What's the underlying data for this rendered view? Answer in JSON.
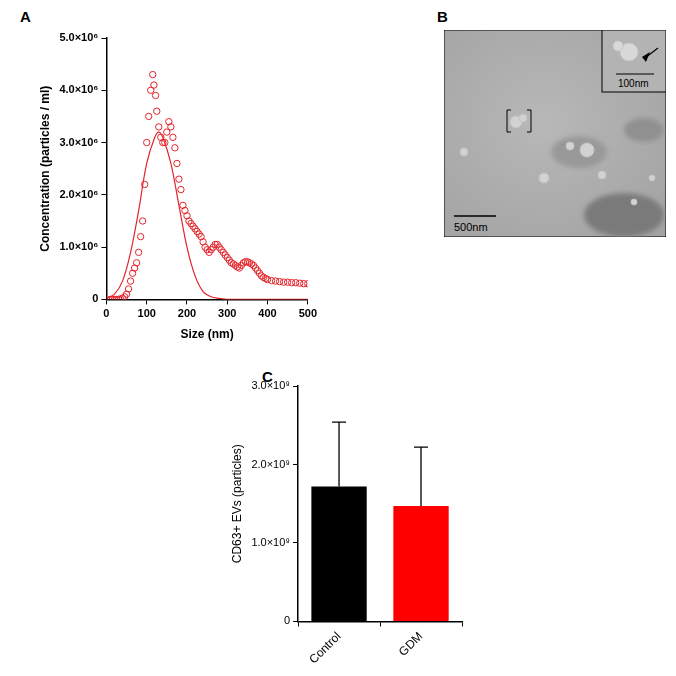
{
  "chart_data": [
    {
      "panel": "A",
      "type": "scatter",
      "x_label": "Size (nm)",
      "y_label": "Concentration (particles / ml)",
      "xlim": [
        0,
        500
      ],
      "xticks": [
        0,
        100,
        200,
        300,
        400,
        500
      ],
      "ylim": [
        0,
        5000000
      ],
      "yticks": [
        0,
        {
          "value": 1000000,
          "label": "1.0×10⁶"
        },
        {
          "value": 2000000,
          "label": "2.0×10⁶"
        },
        {
          "value": 3000000,
          "label": "3.0×10⁶"
        },
        {
          "value": 4000000,
          "label": "4.0×10⁶"
        },
        {
          "value": 5000000,
          "label": "5.0×10⁶"
        }
      ],
      "grid": false,
      "series": [
        {
          "type": "scatter",
          "marker": "circle",
          "color": "#e3242b",
          "x": [
            10,
            15,
            20,
            25,
            30,
            35,
            40,
            45,
            50,
            55,
            60,
            65,
            70,
            75,
            80,
            85,
            90,
            95,
            100,
            105,
            110,
            115,
            118,
            122,
            125,
            130,
            135,
            140,
            145,
            150,
            155,
            160,
            165,
            170,
            175,
            180,
            185,
            190,
            195,
            200,
            205,
            210,
            215,
            220,
            225,
            230,
            235,
            240,
            245,
            250,
            255,
            260,
            265,
            270,
            275,
            280,
            285,
            290,
            295,
            300,
            305,
            310,
            315,
            320,
            325,
            330,
            335,
            340,
            345,
            350,
            355,
            360,
            365,
            370,
            375,
            380,
            385,
            390,
            395,
            400,
            410,
            420,
            430,
            440,
            450,
            460,
            470,
            480,
            490,
            500
          ],
          "values": [
            0,
            0,
            0,
            0,
            0,
            10000,
            20000,
            50000,
            100000,
            200000,
            350000,
            500000,
            600000,
            700000,
            900000,
            1200000,
            1500000,
            2200000,
            3000000,
            3500000,
            4000000,
            4300000,
            4100000,
            3900000,
            3600000,
            3300000,
            3100000,
            3000000,
            3000000,
            3200000,
            3400000,
            3300000,
            3100000,
            2900000,
            2600000,
            2300000,
            2100000,
            1800000,
            1700000,
            1600000,
            1500000,
            1450000,
            1400000,
            1350000,
            1300000,
            1250000,
            1200000,
            1100000,
            1000000,
            950000,
            900000,
            950000,
            1000000,
            1050000,
            1050000,
            1000000,
            950000,
            900000,
            850000,
            800000,
            750000,
            700000,
            680000,
            650000,
            620000,
            600000,
            650000,
            700000,
            720000,
            720000,
            700000,
            680000,
            650000,
            600000,
            550000,
            500000,
            450000,
            420000,
            400000,
            380000,
            360000,
            350000,
            340000,
            330000,
            330000,
            320000,
            320000,
            310000,
            300000,
            300000
          ]
        },
        {
          "type": "line",
          "line_style": "solid",
          "color": "#e3242b",
          "x": [
            0,
            20,
            40,
            60,
            80,
            100,
            120,
            130,
            140,
            160,
            180,
            200,
            220,
            240,
            260,
            280,
            300,
            350,
            400,
            450,
            500
          ],
          "values": [
            20000,
            100000,
            350000,
            900000,
            1700000,
            2600000,
            3100000,
            3200000,
            3100000,
            2600000,
            1800000,
            1000000,
            450000,
            150000,
            50000,
            20000,
            0,
            0,
            0,
            0,
            0
          ]
        }
      ]
    },
    {
      "panel": "B",
      "type": "image",
      "annotations": [
        "500nm",
        "100nm"
      ]
    },
    {
      "panel": "C",
      "type": "bar",
      "y_label": "CD63+ EVs (particles)",
      "categories": [
        "Control",
        "GDM"
      ],
      "values": [
        1720000000,
        1470000000
      ],
      "errors": [
        820000000,
        750000000
      ],
      "colors": [
        "#000000",
        "#ff0000"
      ],
      "ylim": [
        0,
        3000000000
      ],
      "yticks": [
        0,
        {
          "value": 1000000000,
          "label": "1.0×10⁹"
        },
        {
          "value": 2000000000,
          "label": "2.0×10⁹"
        },
        {
          "value": 3000000000,
          "label": "3.0×10⁹"
        }
      ],
      "grid": false
    }
  ]
}
